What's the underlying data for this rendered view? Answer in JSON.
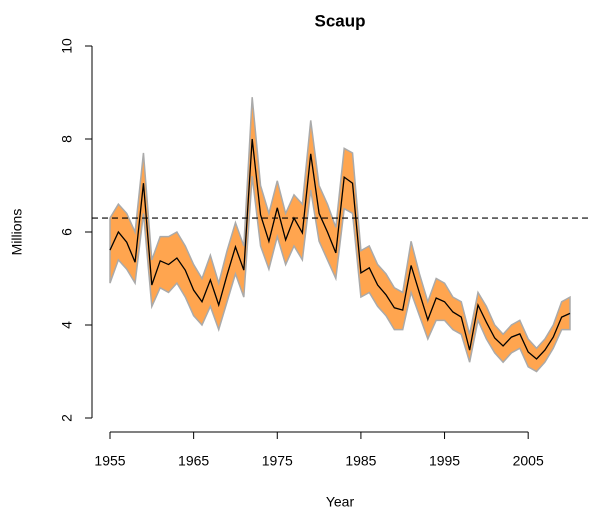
{
  "chart_data": {
    "type": "band-line",
    "title": "Scaup",
    "x_label": "Year",
    "y_label": "Millions",
    "x": [
      1955,
      1956,
      1957,
      1958,
      1959,
      1960,
      1961,
      1962,
      1963,
      1964,
      1965,
      1966,
      1967,
      1968,
      1969,
      1970,
      1971,
      1972,
      1973,
      1974,
      1975,
      1976,
      1977,
      1978,
      1979,
      1980,
      1981,
      1982,
      1983,
      1984,
      1985,
      1986,
      1987,
      1988,
      1989,
      1990,
      1991,
      1992,
      1993,
      1994,
      1995,
      1996,
      1997,
      1998,
      1999,
      2000,
      2001,
      2002,
      2003,
      2004,
      2005,
      2006,
      2007,
      2008,
      2009,
      2010
    ],
    "values": [
      5.61,
      6.0,
      5.78,
      5.35,
      7.05,
      4.86,
      5.38,
      5.3,
      5.44,
      5.18,
      4.75,
      4.5,
      4.97,
      4.43,
      5.08,
      5.68,
      5.18,
      8.0,
      6.37,
      5.8,
      6.52,
      5.83,
      6.3,
      5.98,
      7.68,
      6.4,
      6.0,
      5.55,
      7.18,
      7.05,
      5.12,
      5.23,
      4.86,
      4.65,
      4.37,
      4.32,
      5.28,
      4.69,
      4.11,
      4.58,
      4.5,
      4.28,
      4.17,
      3.46,
      4.43,
      4.06,
      3.72,
      3.55,
      3.74,
      3.81,
      3.42,
      3.27,
      3.46,
      3.74,
      4.17,
      4.25
    ],
    "upper": [
      6.3,
      6.6,
      6.4,
      6.0,
      7.7,
      5.4,
      5.9,
      5.9,
      6.0,
      5.7,
      5.3,
      5.0,
      5.5,
      4.9,
      5.6,
      6.2,
      5.7,
      8.9,
      7.0,
      6.4,
      7.1,
      6.4,
      6.8,
      6.6,
      8.4,
      7.0,
      6.6,
      6.1,
      7.8,
      7.7,
      5.6,
      5.7,
      5.3,
      5.1,
      4.8,
      4.7,
      5.8,
      5.1,
      4.5,
      5.0,
      4.9,
      4.6,
      4.5,
      3.8,
      4.7,
      4.4,
      4.0,
      3.8,
      4.0,
      4.1,
      3.7,
      3.5,
      3.7,
      4.0,
      4.5,
      4.6
    ],
    "lower": [
      4.9,
      5.4,
      5.2,
      4.9,
      6.4,
      4.4,
      4.8,
      4.7,
      4.9,
      4.6,
      4.2,
      4.0,
      4.4,
      3.9,
      4.5,
      5.1,
      4.6,
      7.2,
      5.7,
      5.2,
      5.9,
      5.3,
      5.7,
      5.4,
      6.9,
      5.8,
      5.4,
      5.0,
      6.5,
      6.4,
      4.6,
      4.7,
      4.4,
      4.2,
      3.9,
      3.9,
      4.7,
      4.2,
      3.7,
      4.1,
      4.1,
      3.9,
      3.8,
      3.2,
      4.1,
      3.7,
      3.4,
      3.2,
      3.4,
      3.5,
      3.1,
      3.0,
      3.2,
      3.5,
      3.9,
      3.9
    ],
    "line_color": "#000000",
    "band_color": "#ffa54f",
    "band_edge_color": "#aaaaaa",
    "reference_line": 6.3,
    "xlim": [
      1955,
      2010
    ],
    "xticks": [
      1955,
      1965,
      1975,
      1985,
      1995,
      2005
    ],
    "ylim": [
      2,
      10
    ],
    "yticks": [
      2,
      4,
      6,
      8,
      10
    ]
  }
}
